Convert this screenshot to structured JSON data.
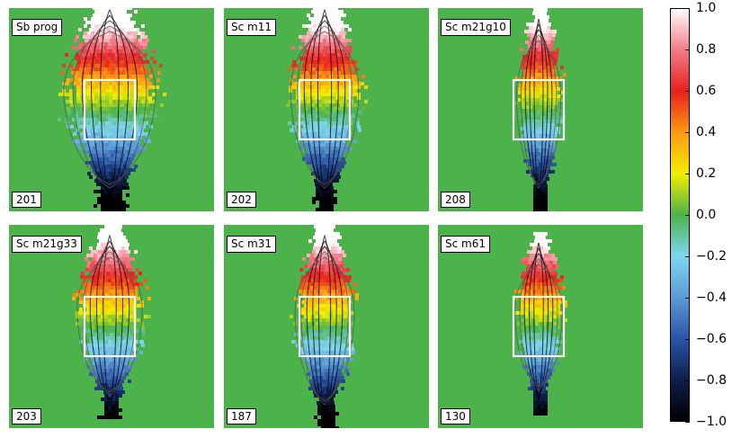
{
  "panels": [
    {
      "name": "Sb prog",
      "count": "201"
    },
    {
      "name": "Sc m11",
      "count": "202"
    },
    {
      "name": "Sc m21g10",
      "count": "208"
    },
    {
      "name": "Sc m21g33",
      "count": "203"
    },
    {
      "name": "Sc m31",
      "count": "187"
    },
    {
      "name": "Sc m61",
      "count": "130"
    }
  ],
  "colorbar": {
    "min": -1.0,
    "max": 1.0,
    "ticks": [
      "1.0",
      "0.8",
      "0.6",
      "0.4",
      "0.2",
      "0.0",
      "−0.2",
      "−0.4",
      "−0.6",
      "−0.8",
      "−1.0"
    ],
    "colors": [
      "#000000",
      "#0e1e4a",
      "#2a54a6",
      "#5b9bd5",
      "#7fd6f0",
      "#4bb34a",
      "#f2ee00",
      "#fb9a13",
      "#e8201e",
      "#f07c88",
      "#ffffff"
    ]
  },
  "chart_data": {
    "type": "heatmap",
    "layout": "2x3 panels",
    "colormap_range": [
      -1.0,
      1.0
    ],
    "background_value": 0.0,
    "gradient": "positive values at top, negative values at bottom",
    "overlay": "black contour lines and a white rectangular box in each panel",
    "series": [
      {
        "name": "Sb prog",
        "count": 201
      },
      {
        "name": "Sc m11",
        "count": 202
      },
      {
        "name": "Sc m21g10",
        "count": 208
      },
      {
        "name": "Sc m21g33",
        "count": 203
      },
      {
        "name": "Sc m31",
        "count": 187
      },
      {
        "name": "Sc m61",
        "count": 130
      }
    ]
  }
}
